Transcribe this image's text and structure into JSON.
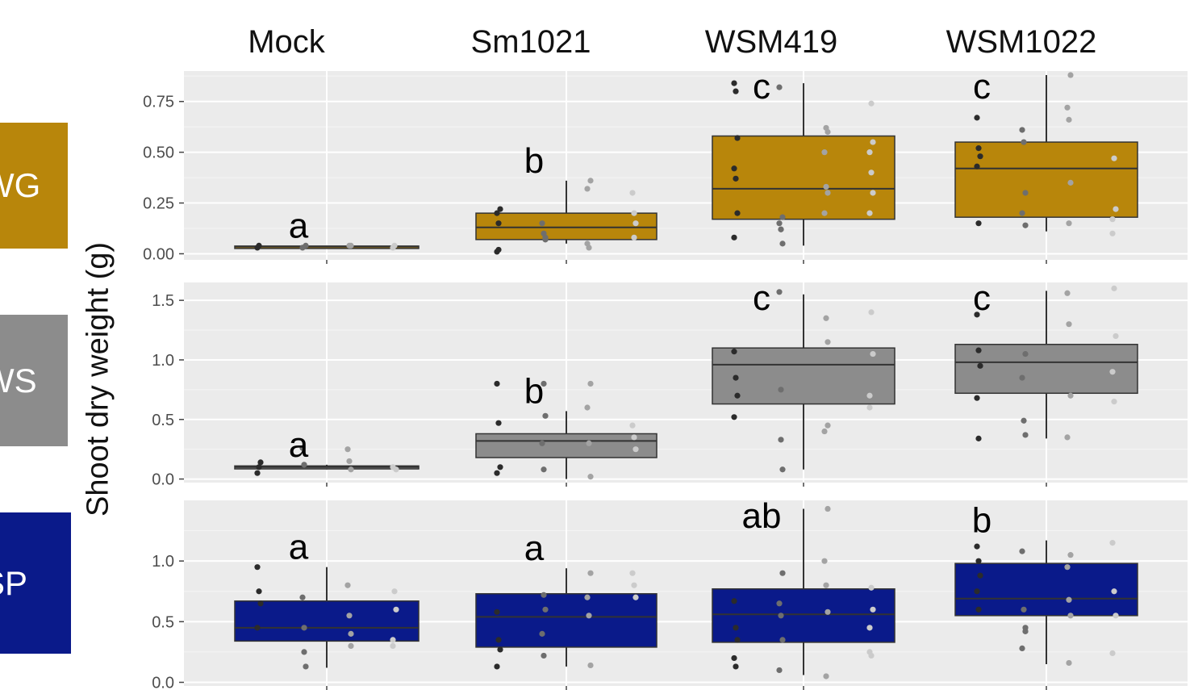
{
  "chart_data": {
    "type": "box",
    "ylabel": "Shoot dry weight (g)",
    "columns": [
      "Mock",
      "Sm1021",
      "WSM419",
      "WSM1022"
    ],
    "grid": true,
    "rows": [
      {
        "name": "WG",
        "color": "#b8860b",
        "ylim": [
          -0.03,
          0.9
        ],
        "yticks": [
          "0.00",
          "0.25",
          "0.50",
          "0.75"
        ],
        "ytick_values": [
          0,
          0.25,
          0.5,
          0.75
        ],
        "letters": [
          "a",
          "b",
          "c",
          "c"
        ],
        "boxes": [
          {
            "min": 0.03,
            "q1": 0.032,
            "median": 0.035,
            "q3": 0.038,
            "max": 0.04
          },
          {
            "min": 0.05,
            "q1": 0.07,
            "median": 0.13,
            "q3": 0.2,
            "max": 0.36
          },
          {
            "min": 0.04,
            "q1": 0.17,
            "median": 0.32,
            "q3": 0.58,
            "max": 0.84
          },
          {
            "min": 0.11,
            "q1": 0.18,
            "median": 0.42,
            "q3": 0.55,
            "max": 0.88
          }
        ],
        "points": [
          [
            0.03,
            0.04,
            0.04,
            0.03,
            0.04,
            0.04,
            0.03,
            0.04
          ],
          [
            0.01,
            0.02,
            0.22,
            0.2,
            0.15,
            0.08,
            0.15,
            0.1,
            0.07,
            0.05,
            0.03,
            0.36,
            0.32,
            0.2,
            0.15,
            0.3,
            0.08
          ],
          [
            0.84,
            0.8,
            0.57,
            0.42,
            0.37,
            0.2,
            0.08,
            0.12,
            0.18,
            0.15,
            0.12,
            0.05,
            0.82,
            0.62,
            0.6,
            0.5,
            0.33,
            0.3,
            0.2,
            0.74,
            0.55,
            0.5,
            0.4,
            0.3,
            0.2
          ],
          [
            0.67,
            0.52,
            0.48,
            0.43,
            0.15,
            0.14,
            0.61,
            0.55,
            0.3,
            0.2,
            0.15,
            0.88,
            0.72,
            0.66,
            0.35,
            0.17,
            0.47,
            0.22,
            0.1
          ]
        ]
      },
      {
        "name": "WS",
        "color": "#8c8c8c",
        "ylim": [
          -0.03,
          1.65
        ],
        "yticks": [
          "0.0",
          "0.5",
          "1.0",
          "1.5"
        ],
        "ytick_values": [
          0,
          0.5,
          1.0,
          1.5
        ],
        "letters": [
          "a",
          "b",
          "c",
          "c"
        ],
        "boxes": [
          {
            "min": 0.08,
            "q1": 0.085,
            "median": 0.1,
            "q3": 0.11,
            "max": 0.12
          },
          {
            "min": 0.0,
            "q1": 0.18,
            "median": 0.32,
            "q3": 0.38,
            "max": 0.57
          },
          {
            "min": 0.08,
            "q1": 0.63,
            "median": 0.96,
            "q3": 1.1,
            "max": 1.55
          },
          {
            "min": 0.34,
            "q1": 0.72,
            "median": 0.98,
            "q3": 1.13,
            "max": 1.58
          }
        ],
        "points": [
          [
            0.05,
            0.1,
            0.14,
            0.26,
            0.12,
            0.08,
            0.25,
            0.15,
            0.08,
            0.1
          ],
          [
            0.8,
            0.47,
            0.1,
            0.05,
            0.8,
            0.53,
            0.3,
            0.08,
            0.8,
            0.6,
            0.3,
            0.02,
            0.45,
            0.35,
            0.25
          ],
          [
            1.07,
            0.85,
            0.7,
            0.52,
            0.33,
            0.08,
            1.57,
            0.75,
            0.45,
            0.4,
            1.35,
            1.15,
            0.7,
            1.4,
            1.05,
            0.6
          ],
          [
            1.38,
            1.08,
            0.95,
            0.68,
            0.34,
            1.05,
            0.85,
            0.49,
            0.37,
            1.56,
            1.3,
            0.7,
            0.35,
            1.6,
            1.2,
            0.9,
            0.65
          ]
        ]
      },
      {
        "name": "SP",
        "color": "#0a1a8a",
        "ylim": [
          -0.03,
          1.5
        ],
        "yticks": [
          "0.0",
          "0.5",
          "1.0"
        ],
        "ytick_values": [
          0,
          0.5,
          1.0
        ],
        "letters": [
          "a",
          "a",
          "ab",
          "b"
        ],
        "boxes": [
          {
            "min": 0.12,
            "q1": 0.34,
            "median": 0.45,
            "q3": 0.67,
            "max": 0.95
          },
          {
            "min": 0.13,
            "q1": 0.29,
            "median": 0.54,
            "q3": 0.73,
            "max": 0.94
          },
          {
            "min": 0.06,
            "q1": 0.33,
            "median": 0.56,
            "q3": 0.77,
            "max": 1.43
          },
          {
            "min": 0.15,
            "q1": 0.55,
            "median": 0.69,
            "q3": 0.98,
            "max": 1.17
          }
        ],
        "points": [
          [
            0.95,
            0.75,
            0.65,
            0.45,
            0.25,
            0.13,
            0.7,
            0.45,
            0.3,
            0.8,
            0.55,
            0.4,
            0.35,
            0.75,
            0.6,
            0.3
          ],
          [
            0.58,
            0.35,
            0.27,
            0.13,
            0.72,
            0.6,
            0.4,
            0.22,
            0.9,
            0.7,
            0.55,
            0.14,
            0.9,
            0.8,
            0.7
          ],
          [
            0.67,
            0.45,
            0.35,
            0.2,
            0.13,
            0.9,
            0.65,
            0.55,
            0.35,
            0.1,
            0.05,
            1.43,
            1.0,
            0.8,
            0.58,
            0.25,
            0.78,
            0.6,
            0.45,
            0.22
          ],
          [
            1.12,
            1.0,
            0.88,
            0.75,
            0.6,
            0.45,
            1.08,
            0.6,
            0.42,
            0.28,
            0.16,
            1.05,
            0.95,
            0.68,
            0.55,
            1.15,
            0.75,
            0.55,
            0.24
          ]
        ]
      }
    ]
  }
}
